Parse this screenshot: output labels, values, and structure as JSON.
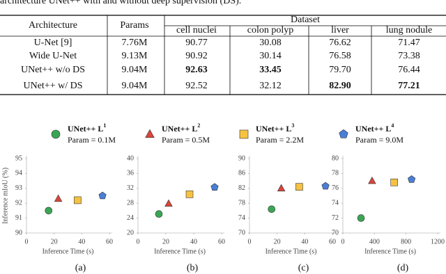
{
  "caption_fragment": "architecture UNet++ with and without deep supervision (DS).",
  "table": {
    "header": [
      "Architecture",
      "Params",
      "Dataset"
    ],
    "subheader": [
      "cell nuclei",
      "colon polyp",
      "liver",
      "lung nodule"
    ],
    "rows": [
      [
        "U-Net [9]",
        "7.76M",
        "90.77",
        "30.08",
        "76.62",
        "71.47"
      ],
      [
        "Wide U-Net",
        "9.13M",
        "90.92",
        "30.14",
        "76.58",
        "73.38"
      ],
      [
        "UNet++ w/o DS",
        "9.04M",
        "92.63",
        "33.45",
        "79.70",
        "76.44"
      ],
      [
        "UNet++ w/ DS",
        "9.04M",
        "92.52",
        "32.12",
        "82.90",
        "77.21"
      ]
    ],
    "bold_cells": [
      [
        2,
        2
      ],
      [
        2,
        3
      ],
      [
        3,
        4
      ],
      [
        3,
        5
      ]
    ]
  },
  "legend": [
    {
      "name": "UNet++ L",
      "sup": "1",
      "param": "Param = 0.1M",
      "color": "#3aa655",
      "marker": "circle"
    },
    {
      "name": "UNet++ L",
      "sup": "2",
      "param": "Param = 0.5M",
      "color": "#d9463b",
      "marker": "triangle"
    },
    {
      "name": "UNet++ L",
      "sup": "3",
      "param": "Param = 2.2M",
      "color": "#f5c242",
      "marker": "square"
    },
    {
      "name": "UNet++ L",
      "sup": "4",
      "param": "Param = 9.0M",
      "color": "#4a7fd6",
      "marker": "pentagon"
    }
  ],
  "chart_data": [
    {
      "type": "scatter",
      "caption": "(a)",
      "x_label": "Inference Time (s)",
      "y_label": "Inference mIoU (%)",
      "xlim": [
        0,
        60
      ],
      "xticks": [
        0,
        20,
        40,
        60
      ],
      "ylim": [
        90,
        95
      ],
      "yticks": [
        90,
        91,
        92,
        93,
        94,
        95
      ],
      "series": [
        {
          "color": "#3aa655",
          "marker": "circle",
          "x": [
            16
          ],
          "values": [
            91.5
          ]
        },
        {
          "color": "#d9463b",
          "marker": "triangle",
          "x": [
            23
          ],
          "values": [
            92.3
          ]
        },
        {
          "color": "#f5c242",
          "marker": "square",
          "x": [
            37
          ],
          "values": [
            92.2
          ]
        },
        {
          "color": "#4a7fd6",
          "marker": "pentagon",
          "x": [
            55
          ],
          "values": [
            92.5
          ]
        }
      ]
    },
    {
      "type": "scatter",
      "caption": "(b)",
      "x_label": "Inference Time (s)",
      "xlim": [
        0,
        60
      ],
      "xticks": [
        0,
        20,
        40,
        60
      ],
      "ylim": [
        20,
        40
      ],
      "yticks": [
        20,
        24,
        28,
        32,
        36,
        40
      ],
      "series": [
        {
          "color": "#3aa655",
          "marker": "circle",
          "x": [
            15
          ],
          "values": [
            25.1
          ]
        },
        {
          "color": "#d9463b",
          "marker": "triangle",
          "x": [
            22
          ],
          "values": [
            27.9
          ]
        },
        {
          "color": "#f5c242",
          "marker": "square",
          "x": [
            37
          ],
          "values": [
            30.4
          ]
        },
        {
          "color": "#4a7fd6",
          "marker": "pentagon",
          "x": [
            55
          ],
          "values": [
            32.3
          ]
        }
      ]
    },
    {
      "type": "scatter",
      "caption": "(c)",
      "x_label": "Inference Time (s)",
      "xlim": [
        0,
        60
      ],
      "xticks": [
        0,
        20,
        40,
        60
      ],
      "ylim": [
        70,
        90
      ],
      "yticks": [
        70,
        74,
        78,
        82,
        86,
        90
      ],
      "series": [
        {
          "color": "#3aa655",
          "marker": "circle",
          "x": [
            16
          ],
          "values": [
            76.4
          ]
        },
        {
          "color": "#d9463b",
          "marker": "triangle",
          "x": [
            23
          ],
          "values": [
            82.0
          ]
        },
        {
          "color": "#f5c242",
          "marker": "square",
          "x": [
            36
          ],
          "values": [
            82.4
          ]
        },
        {
          "color": "#4a7fd6",
          "marker": "pentagon",
          "x": [
            55
          ],
          "values": [
            82.6
          ]
        }
      ]
    },
    {
      "type": "scatter",
      "caption": "(d)",
      "x_label": "Inference Time (s)",
      "xlim": [
        0,
        1200
      ],
      "xticks": [
        0,
        400,
        800,
        1200
      ],
      "ylim": [
        70,
        80
      ],
      "yticks": [
        70,
        72,
        74,
        76,
        78,
        80
      ],
      "series": [
        {
          "color": "#3aa655",
          "marker": "circle",
          "x": [
            230
          ],
          "values": [
            72.0
          ]
        },
        {
          "color": "#d9463b",
          "marker": "triangle",
          "x": [
            370
          ],
          "values": [
            77.0
          ]
        },
        {
          "color": "#f5c242",
          "marker": "square",
          "x": [
            650
          ],
          "values": [
            76.8
          ]
        },
        {
          "color": "#4a7fd6",
          "marker": "pentagon",
          "x": [
            870
          ],
          "values": [
            77.2
          ]
        }
      ]
    }
  ]
}
